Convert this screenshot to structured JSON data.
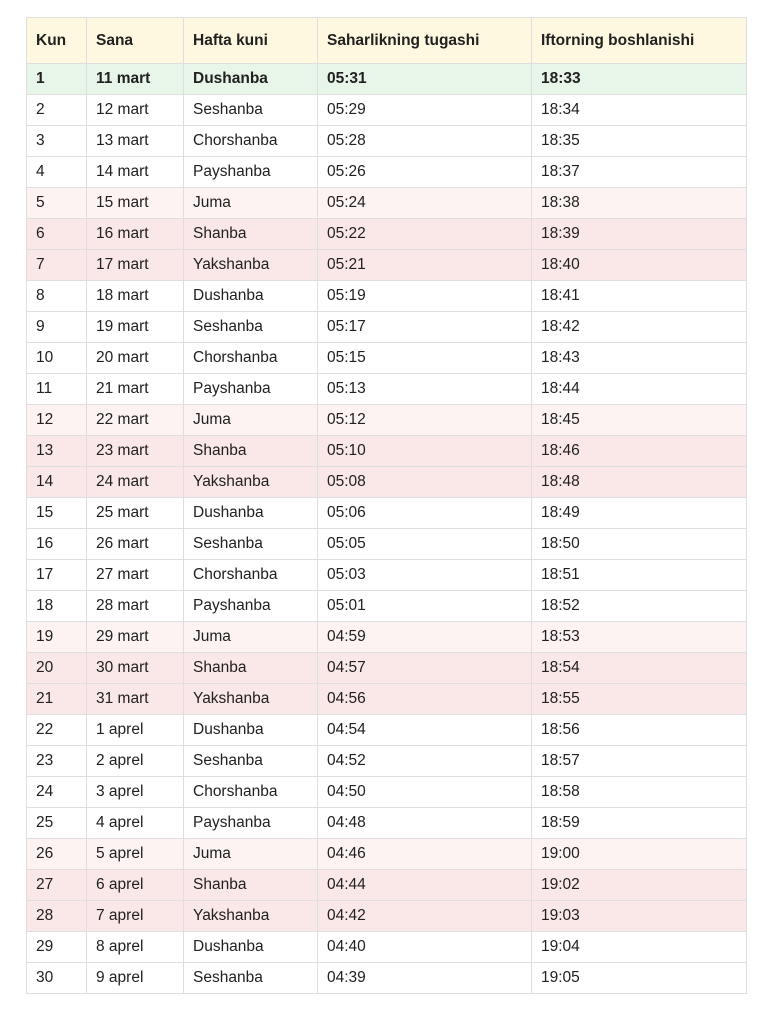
{
  "table": {
    "headers": [
      "Kun",
      "Sana",
      "Hafta kuni",
      "Saharlikning tugashi",
      "Iftorning boshlanishi"
    ],
    "rows": [
      [
        "1",
        "11 mart",
        "Dushanba",
        "05:31",
        "18:33"
      ],
      [
        "2",
        "12 mart",
        "Seshanba",
        "05:29",
        "18:34"
      ],
      [
        "3",
        "13 mart",
        "Chorshanba",
        "05:28",
        "18:35"
      ],
      [
        "4",
        "14 mart",
        "Payshanba",
        "05:26",
        "18:37"
      ],
      [
        "5",
        "15 mart",
        "Juma",
        "05:24",
        "18:38"
      ],
      [
        "6",
        "16 mart",
        "Shanba",
        "05:22",
        "18:39"
      ],
      [
        "7",
        "17 mart",
        "Yakshanba",
        "05:21",
        "18:40"
      ],
      [
        "8",
        "18 mart",
        "Dushanba",
        "05:19",
        "18:41"
      ],
      [
        "9",
        "19 mart",
        "Seshanba",
        "05:17",
        "18:42"
      ],
      [
        "10",
        "20 mart",
        "Chorshanba",
        "05:15",
        "18:43"
      ],
      [
        "11",
        "21 mart",
        "Payshanba",
        "05:13",
        "18:44"
      ],
      [
        "12",
        "22 mart",
        "Juma",
        "05:12",
        "18:45"
      ],
      [
        "13",
        "23 mart",
        "Shanba",
        "05:10",
        "18:46"
      ],
      [
        "14",
        "24 mart",
        "Yakshanba",
        "05:08",
        "18:48"
      ],
      [
        "15",
        "25 mart",
        "Dushanba",
        "05:06",
        "18:49"
      ],
      [
        "16",
        "26 mart",
        "Seshanba",
        "05:05",
        "18:50"
      ],
      [
        "17",
        "27 mart",
        "Chorshanba",
        "05:03",
        "18:51"
      ],
      [
        "18",
        "28 mart",
        "Payshanba",
        "05:01",
        "18:52"
      ],
      [
        "19",
        "29 mart",
        "Juma",
        "04:59",
        "18:53"
      ],
      [
        "20",
        "30 mart",
        "Shanba",
        "04:57",
        "18:54"
      ],
      [
        "21",
        "31 mart",
        "Yakshanba",
        "04:56",
        "18:55"
      ],
      [
        "22",
        "1 aprel",
        "Dushanba",
        "04:54",
        "18:56"
      ],
      [
        "23",
        "2 aprel",
        "Seshanba",
        "04:52",
        "18:57"
      ],
      [
        "24",
        "3 aprel",
        "Chorshanba",
        "04:50",
        "18:58"
      ],
      [
        "25",
        "4 aprel",
        "Payshanba",
        "04:48",
        "18:59"
      ],
      [
        "26",
        "5 aprel",
        "Juma",
        "04:46",
        "19:00"
      ],
      [
        "27",
        "6 aprel",
        "Shanba",
        "04:44",
        "19:02"
      ],
      [
        "28",
        "7 aprel",
        "Yakshanba",
        "04:42",
        "19:03"
      ],
      [
        "29",
        "8 aprel",
        "Dushanba",
        "04:40",
        "19:04"
      ],
      [
        "30",
        "9 aprel",
        "Seshanba",
        "04:39",
        "19:05"
      ]
    ]
  },
  "colors": {
    "header_bg": "#fff8e1",
    "first_day_bg": "#e8f5e9",
    "friday_bg": "#fdf3f2",
    "weekend_bg": "#fae8e8",
    "border": "#dedede",
    "text": "#212121"
  }
}
